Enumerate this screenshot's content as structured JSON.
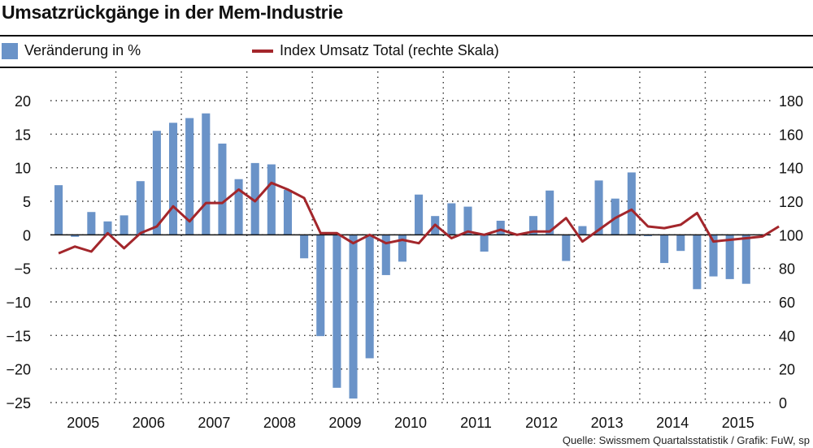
{
  "title": "Umsatzrückgänge in der Mem-Industrie",
  "source": "Quelle: Swissmem Quartalsstatistik / Grafik: FuW, sp",
  "colors": {
    "bar": "#6a93c8",
    "line": "#a3262b",
    "grid": "#333333"
  },
  "chart_data": {
    "type": "bar",
    "title": "Umsatzrückgänge in der Mem-Industrie",
    "legend": [
      "Veränderung in %",
      "Index Umsatz Total (rechte Skala)"
    ],
    "legend_position": "top-left",
    "x_labels": [
      "2005",
      "2006",
      "2007",
      "2008",
      "2009",
      "2010",
      "2011",
      "2012",
      "2013",
      "2014",
      "2015"
    ],
    "quarters_per_year": 4,
    "ylim_left": [
      -25,
      20
    ],
    "yticks_left": [
      -25,
      -20,
      -15,
      -10,
      -5,
      0,
      5,
      10,
      15,
      20
    ],
    "ylim_right": [
      0,
      180
    ],
    "yticks_right": [
      0,
      20,
      40,
      60,
      80,
      100,
      120,
      140,
      160,
      180
    ],
    "grid": "dotted",
    "series": [
      {
        "name": "Veränderung in %",
        "type": "bar",
        "axis": "left",
        "values": [
          7.4,
          -0.3,
          3.4,
          2.0,
          2.9,
          8.0,
          15.5,
          16.7,
          17.4,
          18.1,
          13.6,
          8.3,
          10.7,
          10.5,
          6.7,
          -3.5,
          -15.1,
          -22.8,
          -24.4,
          -18.4,
          -6.0,
          -4.0,
          6.0,
          2.8,
          4.7,
          4.2,
          -2.5,
          2.1,
          0.1,
          2.8,
          6.6,
          -3.9,
          1.3,
          8.1,
          5.4,
          9.3,
          -0.2,
          -4.2,
          -2.4,
          -8.1,
          -6.2,
          -6.6,
          -7.3
        ]
      },
      {
        "name": "Index Umsatz Total (rechte Skala)",
        "type": "line",
        "axis": "right",
        "values": [
          89,
          93,
          90,
          101,
          92,
          101,
          105,
          117,
          108,
          119,
          119,
          127,
          120,
          131,
          127,
          122,
          101,
          101,
          95,
          100,
          95,
          97,
          95,
          106,
          98,
          102,
          100,
          103,
          100,
          102,
          102,
          110,
          96,
          103,
          110,
          115,
          105,
          104,
          106,
          113,
          96,
          97,
          98,
          99,
          105
        ]
      }
    ]
  }
}
